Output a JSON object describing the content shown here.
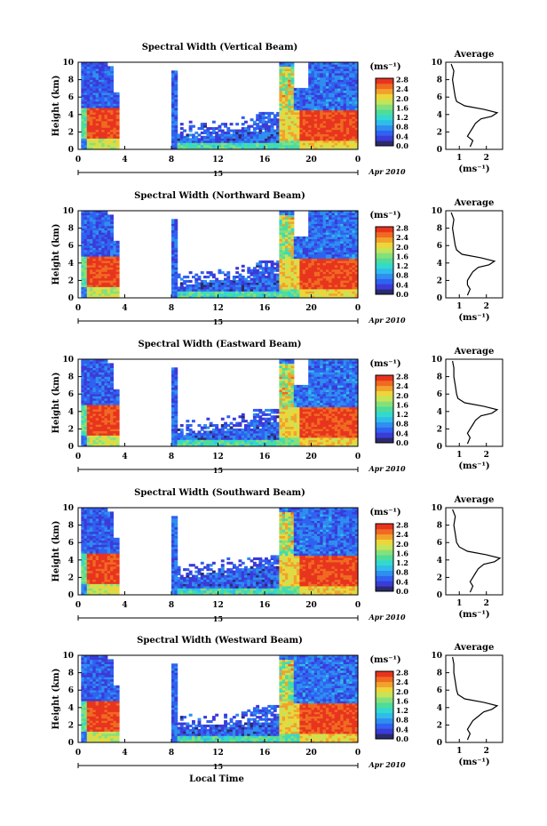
{
  "figure": {
    "x_axis_title": "Local Time",
    "date_label": "Apr 2010",
    "day_label": "15",
    "units_label": "(ms⁻¹)",
    "average_title": "Average"
  },
  "colorbar": {
    "ticks": [
      "0.0",
      "0.4",
      "0.8",
      "1.2",
      "1.6",
      "2.0",
      "2.4",
      "2.8"
    ],
    "colors": [
      "#2a2a6e",
      "#3b3bd8",
      "#2f62f0",
      "#2f8ef0",
      "#2fbcea",
      "#33d8cf",
      "#4fdc9a",
      "#86e07a",
      "#c4e45a",
      "#ecd63a",
      "#f2a22c",
      "#f06a22",
      "#e8341e"
    ]
  },
  "chart_data": [
    {
      "type": "heatmap",
      "title": "Spectral Width (Vertical Beam)",
      "ylabel": "Height (km)",
      "xlim": [
        0,
        24
      ],
      "ylim": [
        0,
        10
      ],
      "xticks": [
        "0",
        "4",
        "8",
        "12",
        "16",
        "20",
        "0"
      ],
      "yticks": [
        "0",
        "2",
        "4",
        "6",
        "8",
        "10"
      ],
      "colorbar_range": [
        0.0,
        2.8
      ],
      "profile": {
        "title": "Average",
        "xlabel": "(ms⁻¹)",
        "xlim": [
          0.5,
          2.6
        ],
        "xticks": [
          "1",
          "2"
        ],
        "ylim": [
          0,
          10
        ],
        "yticks": [
          "0",
          "2",
          "4",
          "6",
          "8",
          "10"
        ],
        "height_km": [
          0.3,
          1,
          1.5,
          2,
          2.5,
          3,
          3.5,
          3.8,
          4.2,
          4.6,
          5,
          5.5,
          6,
          7,
          8,
          9,
          9.8
        ],
        "width_ms": [
          1.4,
          1.5,
          1.3,
          1.4,
          1.5,
          1.6,
          1.8,
          2.2,
          2.4,
          1.9,
          1.2,
          0.9,
          0.85,
          0.8,
          0.75,
          0.8,
          0.7
        ]
      }
    },
    {
      "type": "heatmap",
      "title": "Spectral Width (Northward Beam)",
      "ylabel": "Height (km)",
      "xlim": [
        0,
        24
      ],
      "ylim": [
        0,
        10
      ],
      "xticks": [
        "0",
        "4",
        "8",
        "12",
        "16",
        "20",
        "0"
      ],
      "yticks": [
        "0",
        "2",
        "4",
        "6",
        "8",
        "10"
      ],
      "colorbar_range": [
        0.0,
        2.8
      ],
      "profile": {
        "title": "Average",
        "xlabel": "(ms⁻¹)",
        "xlim": [
          0.5,
          2.6
        ],
        "xticks": [
          "1",
          "2"
        ],
        "ylim": [
          0,
          10
        ],
        "yticks": [
          "0",
          "2",
          "4",
          "6",
          "8",
          "10"
        ],
        "height_km": [
          0.3,
          1,
          1.5,
          2,
          2.5,
          3,
          3.5,
          3.8,
          4.2,
          4.6,
          5,
          5.5,
          6,
          7,
          8,
          9,
          9.8
        ],
        "width_ms": [
          1.3,
          1.4,
          1.3,
          1.3,
          1.4,
          1.5,
          1.7,
          2.1,
          2.3,
          1.8,
          1.1,
          0.9,
          0.85,
          0.8,
          0.75,
          0.8,
          0.7
        ]
      }
    },
    {
      "type": "heatmap",
      "title": "Spectral Width (Eastward Beam)",
      "ylabel": "Height (km)",
      "xlim": [
        0,
        24
      ],
      "ylim": [
        0,
        10
      ],
      "xticks": [
        "0",
        "4",
        "8",
        "12",
        "16",
        "20",
        "0"
      ],
      "yticks": [
        "0",
        "2",
        "4",
        "6",
        "8",
        "10"
      ],
      "colorbar_range": [
        0.0,
        2.8
      ],
      "profile": {
        "title": "Average",
        "xlabel": "(ms⁻¹)",
        "xlim": [
          0.5,
          2.6
        ],
        "xticks": [
          "1",
          "2"
        ],
        "ylim": [
          0,
          10
        ],
        "yticks": [
          "0",
          "2",
          "4",
          "6",
          "8",
          "10"
        ],
        "height_km": [
          0.3,
          1,
          1.5,
          2,
          2.5,
          3,
          3.5,
          3.8,
          4.2,
          4.6,
          5,
          5.5,
          6,
          7,
          8,
          9,
          9.8
        ],
        "width_ms": [
          1.3,
          1.4,
          1.3,
          1.4,
          1.5,
          1.6,
          1.8,
          2.2,
          2.4,
          1.9,
          1.2,
          0.95,
          0.9,
          0.85,
          0.8,
          0.8,
          0.75
        ]
      }
    },
    {
      "type": "heatmap",
      "title": "Spectral Width (Southward Beam)",
      "ylabel": "Height (km)",
      "xlim": [
        0,
        24
      ],
      "ylim": [
        0,
        10
      ],
      "xticks": [
        "0",
        "4",
        "8",
        "12",
        "16",
        "20",
        "0"
      ],
      "yticks": [
        "0",
        "2",
        "4",
        "6",
        "8",
        "10"
      ],
      "colorbar_range": [
        0.0,
        2.8
      ],
      "profile": {
        "title": "Average",
        "xlabel": "(ms⁻¹)",
        "xlim": [
          0.5,
          2.6
        ],
        "xticks": [
          "1",
          "2"
        ],
        "ylim": [
          0,
          10
        ],
        "yticks": [
          "0",
          "2",
          "4",
          "6",
          "8",
          "10"
        ],
        "height_km": [
          0.3,
          1,
          1.5,
          2,
          2.5,
          3,
          3.5,
          3.8,
          4.2,
          4.6,
          5,
          5.5,
          6,
          7,
          8,
          9,
          9.8
        ],
        "width_ms": [
          1.4,
          1.5,
          1.4,
          1.5,
          1.6,
          1.7,
          1.9,
          2.3,
          2.5,
          2.0,
          1.3,
          1.0,
          0.9,
          0.85,
          0.8,
          0.85,
          0.75
        ]
      }
    },
    {
      "type": "heatmap",
      "title": "Spectral Width (Westward Beam)",
      "ylabel": "Height (km)",
      "xlabel": "Local Time",
      "xlim": [
        0,
        24
      ],
      "ylim": [
        0,
        10
      ],
      "xticks": [
        "0",
        "4",
        "8",
        "12",
        "16",
        "20",
        "0"
      ],
      "yticks": [
        "0",
        "2",
        "4",
        "6",
        "8",
        "10"
      ],
      "colorbar_range": [
        0.0,
        2.8
      ],
      "profile": {
        "title": "Average",
        "xlabel": "(ms⁻¹)",
        "xlim": [
          0.5,
          2.6
        ],
        "xticks": [
          "1",
          "2"
        ],
        "ylim": [
          0,
          10
        ],
        "yticks": [
          "0",
          "2",
          "4",
          "6",
          "8",
          "10"
        ],
        "height_km": [
          0.3,
          1,
          1.5,
          2,
          2.5,
          3,
          3.5,
          3.8,
          4.2,
          4.6,
          5,
          5.5,
          6,
          7,
          8,
          9,
          9.8
        ],
        "width_ms": [
          1.3,
          1.4,
          1.3,
          1.4,
          1.5,
          1.7,
          1.9,
          2.2,
          2.4,
          1.9,
          1.2,
          0.95,
          0.9,
          0.85,
          0.8,
          0.8,
          0.75
        ]
      }
    }
  ]
}
